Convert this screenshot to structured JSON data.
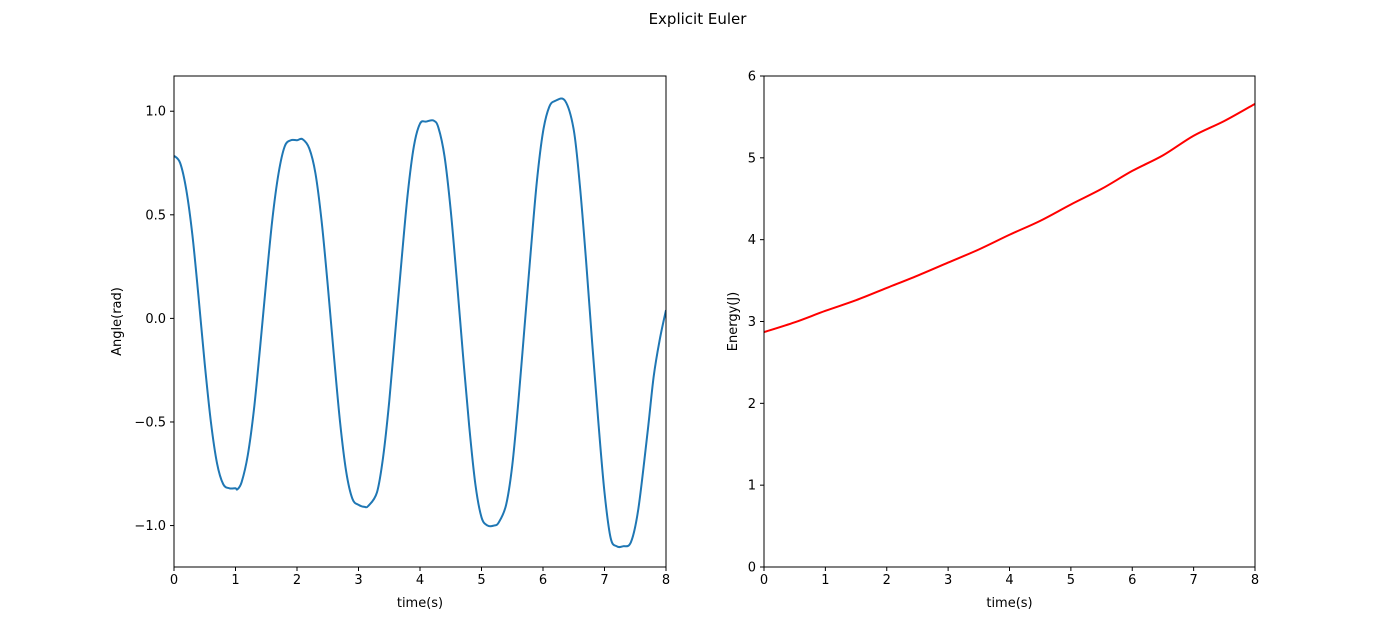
{
  "figure": {
    "title": "Explicit Euler"
  },
  "chart_data": [
    {
      "type": "line",
      "xlabel": "time(s)",
      "ylabel": "Angle(rad)",
      "xlim": [
        0,
        8
      ],
      "ylim": [
        -1.2,
        1.17
      ],
      "xticks": [
        0,
        1,
        2,
        3,
        4,
        5,
        6,
        7,
        8
      ],
      "xtick_labels": [
        "0",
        "1",
        "2",
        "3",
        "4",
        "5",
        "6",
        "7",
        "8"
      ],
      "yticks": [
        -1.0,
        -0.5,
        0.0,
        0.5,
        1.0
      ],
      "ytick_labels": [
        "−1.0",
        "−0.5",
        "0.0",
        "0.5",
        "1.0"
      ],
      "grid": false,
      "series": [
        {
          "color": "#1f77b4",
          "x": [
            0,
            0.1,
            0.2,
            0.3,
            0.4,
            0.5,
            0.6,
            0.7,
            0.8,
            0.9,
            1.0,
            1.03,
            1.1,
            1.2,
            1.3,
            1.4,
            1.5,
            1.6,
            1.7,
            1.8,
            1.9,
            2.0,
            2.09,
            2.2,
            2.3,
            2.4,
            2.5,
            2.6,
            2.7,
            2.8,
            2.9,
            3.0,
            3.1,
            3.16,
            3.3,
            3.4,
            3.5,
            3.6,
            3.7,
            3.8,
            3.9,
            4.0,
            4.1,
            4.22,
            4.3,
            4.4,
            4.5,
            4.6,
            4.7,
            4.8,
            4.9,
            5.0,
            5.1,
            5.2,
            5.28,
            5.4,
            5.5,
            5.6,
            5.7,
            5.8,
            5.9,
            6.0,
            6.1,
            6.2,
            6.36,
            6.5,
            6.6,
            6.7,
            6.8,
            6.9,
            7.0,
            7.1,
            7.2,
            7.3,
            7.43,
            7.55,
            7.7,
            7.8,
            7.9,
            8.0
          ],
          "y": [
            0.785,
            0.75,
            0.62,
            0.4,
            0.1,
            -0.22,
            -0.5,
            -0.7,
            -0.8,
            -0.82,
            -0.82,
            -0.825,
            -0.79,
            -0.66,
            -0.44,
            -0.14,
            0.18,
            0.48,
            0.7,
            0.83,
            0.86,
            0.86,
            0.865,
            0.82,
            0.7,
            0.47,
            0.16,
            -0.18,
            -0.5,
            -0.74,
            -0.87,
            -0.9,
            -0.91,
            -0.905,
            -0.84,
            -0.67,
            -0.4,
            -0.06,
            0.28,
            0.6,
            0.83,
            0.94,
            0.95,
            0.955,
            0.92,
            0.78,
            0.52,
            0.18,
            -0.18,
            -0.52,
            -0.8,
            -0.96,
            -1.0,
            -1.0,
            -0.985,
            -0.9,
            -0.71,
            -0.4,
            -0.04,
            0.32,
            0.66,
            0.9,
            1.02,
            1.05,
            1.05,
            0.91,
            0.64,
            0.28,
            -0.12,
            -0.5,
            -0.84,
            -1.06,
            -1.1,
            -1.1,
            -1.08,
            -0.92,
            -0.55,
            -0.28,
            -0.1,
            0.04
          ]
        }
      ]
    },
    {
      "type": "line",
      "xlabel": "time(s)",
      "ylabel": "Energy(J)",
      "xlim": [
        0,
        8
      ],
      "ylim": [
        0,
        6
      ],
      "xticks": [
        0,
        1,
        2,
        3,
        4,
        5,
        6,
        7,
        8
      ],
      "xtick_labels": [
        "0",
        "1",
        "2",
        "3",
        "4",
        "5",
        "6",
        "7",
        "8"
      ],
      "yticks": [
        0,
        1,
        2,
        3,
        4,
        5,
        6
      ],
      "ytick_labels": [
        "0",
        "1",
        "2",
        "3",
        "4",
        "5",
        "6"
      ],
      "grid": false,
      "series": [
        {
          "color": "#ff0000",
          "x": [
            0,
            0.5,
            1.0,
            1.5,
            2.0,
            2.5,
            3.0,
            3.5,
            4.0,
            4.5,
            5.0,
            5.5,
            6.0,
            6.5,
            7.0,
            7.5,
            8.0
          ],
          "y": [
            2.87,
            2.99,
            3.13,
            3.26,
            3.41,
            3.56,
            3.72,
            3.88,
            4.06,
            4.23,
            4.43,
            4.62,
            4.84,
            5.03,
            5.27,
            5.45,
            5.66
          ]
        }
      ]
    }
  ]
}
